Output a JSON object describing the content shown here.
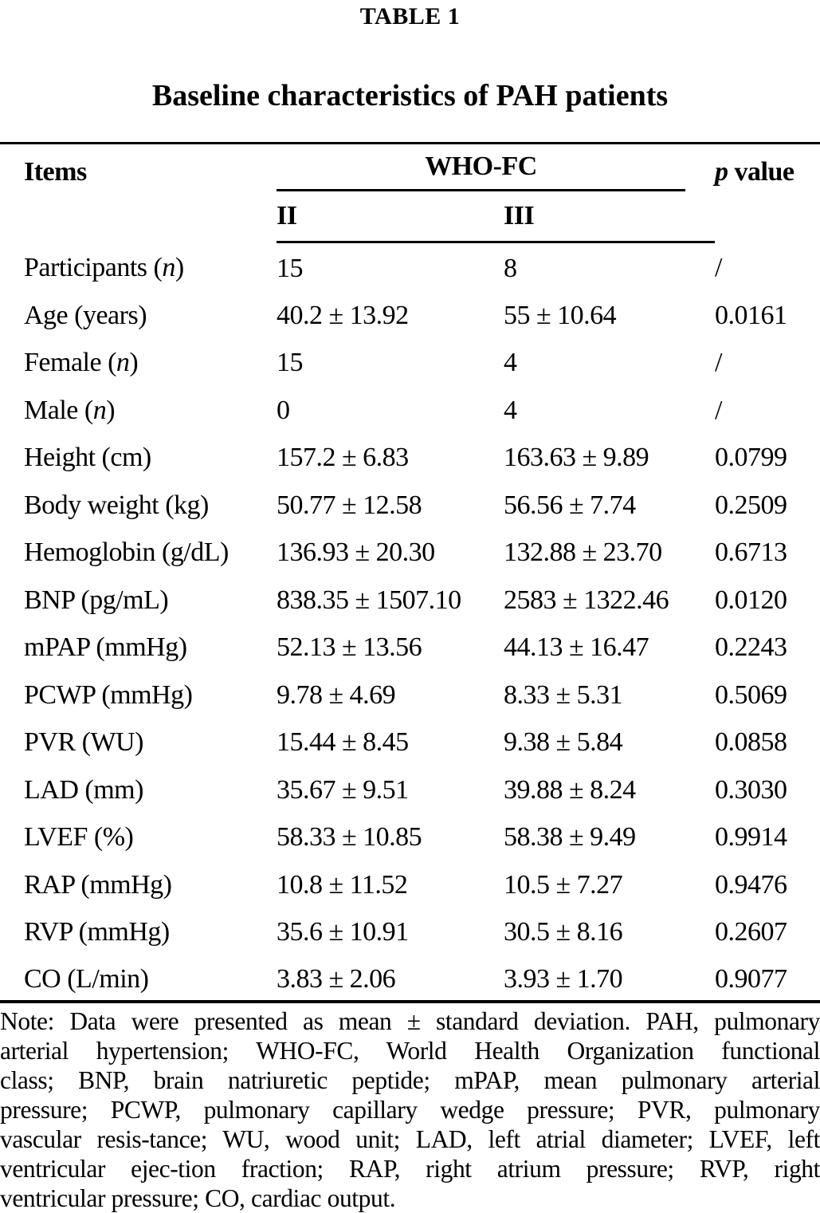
{
  "page": {
    "table_label": "TABLE 1",
    "caption": "Baseline characteristics of PAH patients"
  },
  "table": {
    "header": {
      "items": "Items",
      "group": "WHO-FC",
      "p_italic": "p",
      "p_rest": " value",
      "sub_col2": "II",
      "sub_col3": "III"
    },
    "rows": [
      {
        "pre": "Participants (",
        "it": "n",
        "post": ")",
        "fc2": "15",
        "fc3": "8",
        "p": "/"
      },
      {
        "pre": "Age (years)",
        "it": "",
        "post": "",
        "fc2": "40.2 ± 13.92",
        "fc3": "55 ± 10.64",
        "p": "0.0161"
      },
      {
        "pre": "Female (",
        "it": "n",
        "post": ")",
        "fc2": "15",
        "fc3": "4",
        "p": "/"
      },
      {
        "pre": "Male (",
        "it": "n",
        "post": ")",
        "fc2": "0",
        "fc3": "4",
        "p": "/"
      },
      {
        "pre": "Height (cm)",
        "it": "",
        "post": "",
        "fc2": "157.2 ± 6.83",
        "fc3": "163.63 ± 9.89",
        "p": "0.0799"
      },
      {
        "pre": "Body weight (kg)",
        "it": "",
        "post": "",
        "fc2": "50.77 ± 12.58",
        "fc3": "56.56 ± 7.74",
        "p": "0.2509"
      },
      {
        "pre": "Hemoglobin (g/dL)",
        "it": "",
        "post": "",
        "fc2": "136.93 ± 20.30",
        "fc3": "132.88 ± 23.70",
        "p": "0.6713"
      },
      {
        "pre": "BNP (pg/mL)",
        "it": "",
        "post": "",
        "fc2": "838.35 ± 1507.10",
        "fc3": "2583 ± 1322.46",
        "p": "0.0120"
      },
      {
        "pre": "mPAP (mmHg)",
        "it": "",
        "post": "",
        "fc2": "52.13 ± 13.56",
        "fc3": "44.13 ± 16.47",
        "p": "0.2243"
      },
      {
        "pre": "PCWP (mmHg)",
        "it": "",
        "post": "",
        "fc2": "9.78 ± 4.69",
        "fc3": "8.33 ± 5.31",
        "p": "0.5069"
      },
      {
        "pre": "PVR (WU)",
        "it": "",
        "post": "",
        "fc2": "15.44 ± 8.45",
        "fc3": "9.38 ± 5.84",
        "p": "0.0858"
      },
      {
        "pre": "LAD (mm)",
        "it": "",
        "post": "",
        "fc2": "35.67 ± 9.51",
        "fc3": "39.88 ± 8.24",
        "p": "0.3030"
      },
      {
        "pre": "LVEF (%)",
        "it": "",
        "post": "",
        "fc2": "58.33 ± 10.85",
        "fc3": "58.38 ± 9.49",
        "p": "0.9914"
      },
      {
        "pre": "RAP (mmHg)",
        "it": "",
        "post": "",
        "fc2": "10.8 ± 11.52",
        "fc3": "10.5 ± 7.27",
        "p": "0.9476"
      },
      {
        "pre": "RVP (mmHg)",
        "it": "",
        "post": "",
        "fc2": "35.6 ± 10.91",
        "fc3": "30.5 ± 8.16",
        "p": "0.2607"
      },
      {
        "pre": "CO (L/min)",
        "it": "",
        "post": "",
        "fc2": "3.83 ± 2.06",
        "fc3": "3.93 ± 1.70",
        "p": "0.9077"
      }
    ]
  },
  "note": {
    "lines": [
      "Note: Data were presented as mean ± standard deviation. PAH, pulmonary",
      "arterial hypertension; WHO-FC, World Health Organization functional",
      "class; BNP, brain natriuretic peptide; mPAP, mean pulmonary arterial",
      "pressure; PCWP, pulmonary capillary wedge pressure; PVR, pulmonary",
      "vascular resis-tance; WU, wood unit; LAD, left atrial diameter; LVEF, left",
      "ventricular ejec-tion fraction; RAP, right atrium pressure; RVP, right",
      "ventricular pressure; CO, cardiac output."
    ]
  },
  "colors": {
    "text": "#000000",
    "background": "#ffffff",
    "rule": "#000000"
  }
}
